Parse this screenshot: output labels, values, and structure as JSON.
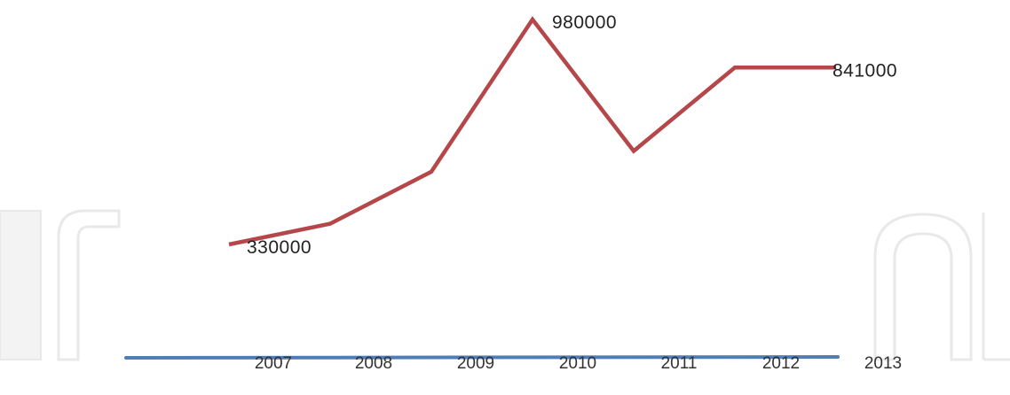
{
  "chart_data": {
    "type": "line",
    "categories": [
      "2007",
      "2008",
      "2009",
      "2010",
      "2011",
      "2012",
      "2013"
    ],
    "series": [
      {
        "values": [
          330000,
          390000,
          540000,
          980000,
          600000,
          841000,
          841000
        ]
      }
    ],
    "data_labels": [
      {
        "index": 0,
        "text": "330000"
      },
      {
        "index": 3,
        "text": "980000"
      },
      {
        "index": 6,
        "text": "841000"
      }
    ],
    "ylim": [
      0,
      1000000
    ],
    "grid": false,
    "colors": {
      "line": "#b5474a",
      "baseline": "#4f7db8"
    }
  }
}
